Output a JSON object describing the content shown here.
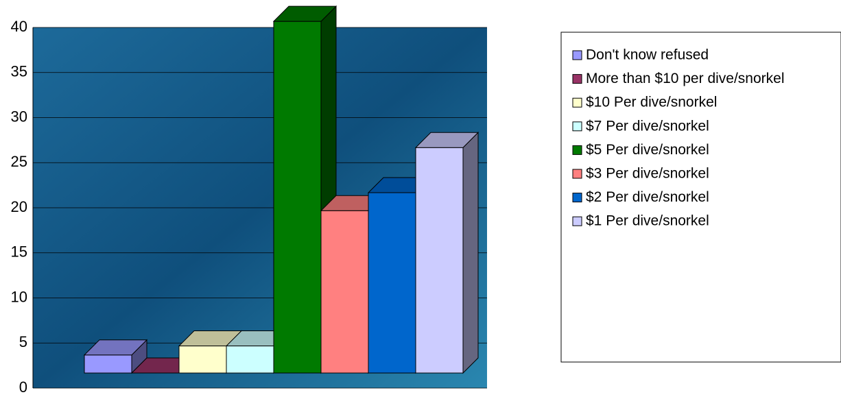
{
  "chart_data": {
    "type": "bar3d",
    "series": [
      {
        "name": "Don't know refused",
        "color": "#9999ff",
        "values": [
          2
        ]
      },
      {
        "name": "More than $10 per dive/snorkel",
        "color": "#993366",
        "values": [
          0
        ]
      },
      {
        "name": "$10 Per dive/snorkel",
        "color": "#ffffcc",
        "values": [
          3
        ]
      },
      {
        "name": "$7 Per dive/snorkel",
        "color": "#ccffff",
        "values": [
          3
        ]
      },
      {
        "name": "$5 Per dive/snorkel",
        "color": "#007a00",
        "values": [
          39
        ]
      },
      {
        "name": "$3 Per dive/snorkel",
        "color": "#ff8080",
        "values": [
          18
        ]
      },
      {
        "name": "$2 Per dive/snorkel",
        "color": "#0066cc",
        "values": [
          20
        ]
      },
      {
        "name": "$1 Per dive/snorkel",
        "color": "#ccccff",
        "values": [
          25
        ]
      }
    ],
    "ylim": [
      0,
      40
    ],
    "yticks": [
      0,
      5,
      10,
      15,
      20,
      25,
      30,
      35,
      40
    ],
    "grid": true,
    "legend": "right"
  }
}
